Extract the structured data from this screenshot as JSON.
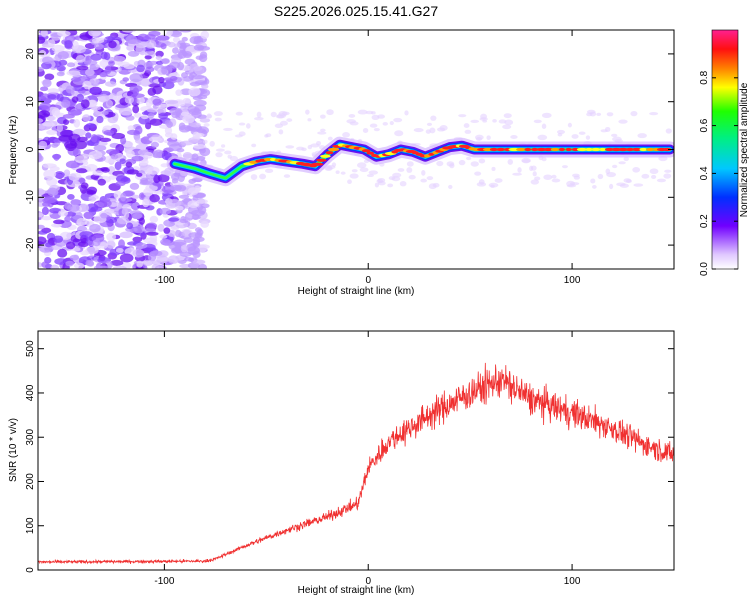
{
  "title": "S225.2026.025.15.41.G27",
  "chart_data": [
    {
      "type": "heatmap",
      "xlabel": "Height of straight line (km)",
      "ylabel": "Frequency (Hz)",
      "xlim": [
        -162,
        150
      ],
      "ylim": [
        -25,
        25
      ],
      "xticks": [
        -100,
        0,
        100
      ],
      "yticks": [
        -20,
        -10,
        0,
        10,
        20
      ],
      "colorbar": {
        "label": "Normalized spectral amplitude",
        "range": [
          0,
          1
        ],
        "ticks": [
          0.0,
          0.2,
          0.4,
          0.6,
          0.8
        ],
        "tick_labels": [
          "0.0",
          "0.2",
          "0.4",
          "0.6",
          "0.8"
        ]
      },
      "ridge": {
        "x": [
          -95,
          -85,
          -78,
          -70,
          -62,
          -55,
          -48,
          -40,
          -32,
          -26,
          -20,
          -14,
          -8,
          -2,
          4,
          10,
          16,
          22,
          28,
          34,
          40,
          46,
          52,
          60,
          70,
          80,
          90,
          100,
          110,
          120,
          130,
          140,
          148
        ],
        "y": [
          -3,
          -4,
          -5,
          -6,
          -3.5,
          -2.5,
          -2,
          -2.5,
          -3,
          -3.5,
          -1,
          1,
          0.5,
          0,
          -1.5,
          -1,
          0,
          -0.5,
          -1.5,
          -0.5,
          0.5,
          0.8,
          0,
          0,
          0,
          0,
          0,
          0,
          0,
          0,
          0,
          0,
          0
        ]
      },
      "noise_region_x": [
        -162,
        -80
      ]
    },
    {
      "type": "line",
      "xlabel": "Height of straight line (km)",
      "ylabel": "SNR (10 * v/v)",
      "xlim": [
        -162,
        150
      ],
      "ylim": [
        0,
        540
      ],
      "xticks": [
        -100,
        0,
        100
      ],
      "yticks": [
        0,
        100,
        200,
        300,
        400,
        500
      ],
      "color": "#f03030",
      "envelope": {
        "x": [
          -162,
          -80,
          -75,
          -60,
          -40,
          -20,
          -5,
          0,
          10,
          30,
          50,
          60,
          65,
          80,
          100,
          120,
          135,
          150
        ],
        "y": [
          18,
          20,
          25,
          55,
          90,
          120,
          150,
          230,
          290,
          350,
          400,
          420,
          430,
          385,
          355,
          320,
          285,
          260
        ]
      }
    }
  ]
}
